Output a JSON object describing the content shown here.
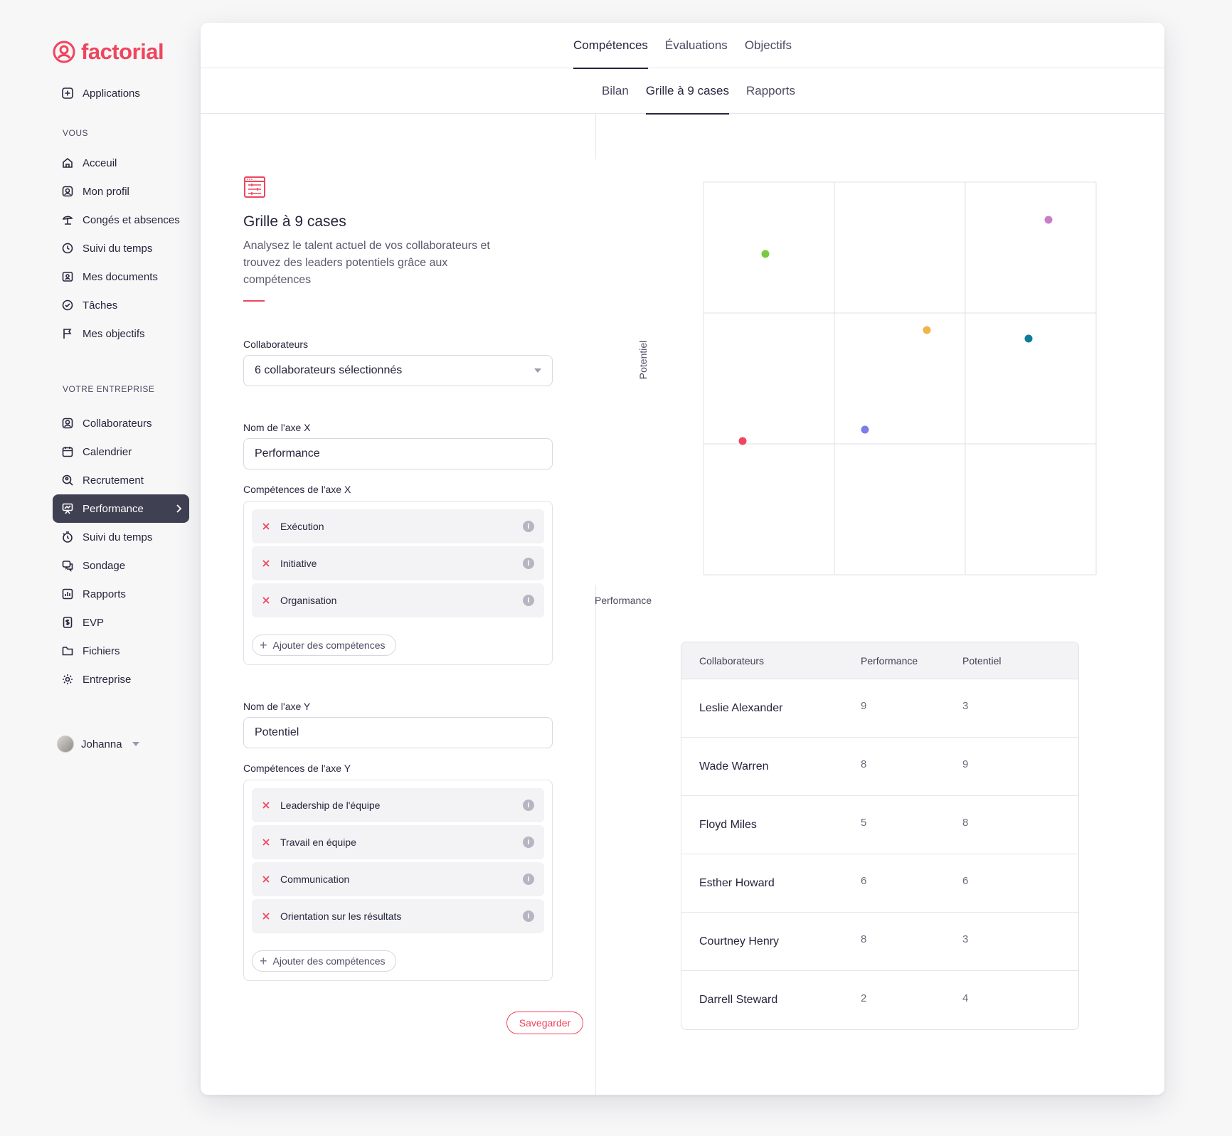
{
  "app": {
    "logo_text": "factorial",
    "brand_color": "#f0455e"
  },
  "sidebar": {
    "top_item": {
      "label": "Applications",
      "icon": "plus-square-icon"
    },
    "section_you": "VOUS",
    "you_items": [
      {
        "label": "Acceuil",
        "icon": "home-icon"
      },
      {
        "label": "Mon profil",
        "icon": "profile-icon"
      },
      {
        "label": "Congés et absences",
        "icon": "beach-umbrella-icon"
      },
      {
        "label": "Suivi du temps",
        "icon": "clock-icon"
      },
      {
        "label": "Mes documents",
        "icon": "document-folder-icon"
      },
      {
        "label": "Tâches",
        "icon": "check-circle-icon"
      },
      {
        "label": "Mes objectifs",
        "icon": "flag-icon"
      }
    ],
    "section_company": "VOTRE ENTREPRISE",
    "company_items": [
      {
        "label": "Collaborateurs",
        "icon": "people-icon"
      },
      {
        "label": "Calendrier",
        "icon": "calendar-icon"
      },
      {
        "label": "Recrutement",
        "icon": "search-person-icon"
      },
      {
        "label": "Performance",
        "icon": "presentation-icon",
        "active": true
      },
      {
        "label": "Suivi du temps",
        "icon": "stopwatch-icon"
      },
      {
        "label": "Sondage",
        "icon": "chat-bubbles-icon"
      },
      {
        "label": "Rapports",
        "icon": "bar-chart-icon"
      },
      {
        "label": "EVP",
        "icon": "dollar-doc-icon"
      },
      {
        "label": "Fichiers",
        "icon": "folder-icon"
      },
      {
        "label": "Entreprise",
        "icon": "gear-icon"
      }
    ],
    "user_name": "Johanna"
  },
  "tabs": {
    "main": [
      "Compétences",
      "Évaluations",
      "Objectifs"
    ],
    "main_active": "Compétences",
    "sub": [
      "Bilan",
      "Grille à 9 cases",
      "Rapports"
    ],
    "sub_active": "Grille à 9 cases"
  },
  "form": {
    "title": "Grille à 9 cases",
    "description": "Analysez le talent actuel de vos collaborateurs et trouvez des leaders potentiels grâce aux compétences",
    "collaborators_label": "Collaborateurs",
    "collaborators_value": "6 collaborateurs sélectionnés",
    "x_name_label": "Nom de l'axe X",
    "x_name_value": "Performance",
    "x_skills_label": "Compétences de l'axe X",
    "x_skills": [
      "Exécution",
      "Initiative",
      "Organisation"
    ],
    "y_name_label": "Nom de l'axe Y",
    "y_name_value": "Potentiel",
    "y_skills_label": "Compétences de l'axe Y",
    "y_skills": [
      "Leadership de l'équipe",
      "Travail en équipe",
      "Communication",
      "Orientation sur les résultats"
    ],
    "add_skills_label": "Ajouter des compétences",
    "save_label": "Savegarder"
  },
  "chart_data": {
    "type": "scatter",
    "title": "",
    "xlabel": "Performance",
    "ylabel": "Potentiel",
    "grid": "3x3",
    "points": [
      {
        "color": "#7ac943"
      },
      {
        "color": "#c97fc8"
      },
      {
        "color": "#f0b44a"
      },
      {
        "color": "#0e7c9a"
      },
      {
        "color": "#7b7ee8"
      },
      {
        "color": "#f0455e"
      }
    ]
  },
  "table": {
    "headers": [
      "Collaborateurs",
      "Performance",
      "Potentiel"
    ],
    "rows": [
      {
        "name": "Leslie Alexander",
        "performance": "9",
        "potential": "3"
      },
      {
        "name": "Wade Warren",
        "performance": "8",
        "potential": "9"
      },
      {
        "name": "Floyd Miles",
        "performance": "5",
        "potential": "8"
      },
      {
        "name": "Esther Howard",
        "performance": "6",
        "potential": "6"
      },
      {
        "name": "Courtney Henry",
        "performance": "8",
        "potential": "3"
      },
      {
        "name": "Darrell Steward",
        "performance": "2",
        "potential": "4"
      }
    ]
  }
}
